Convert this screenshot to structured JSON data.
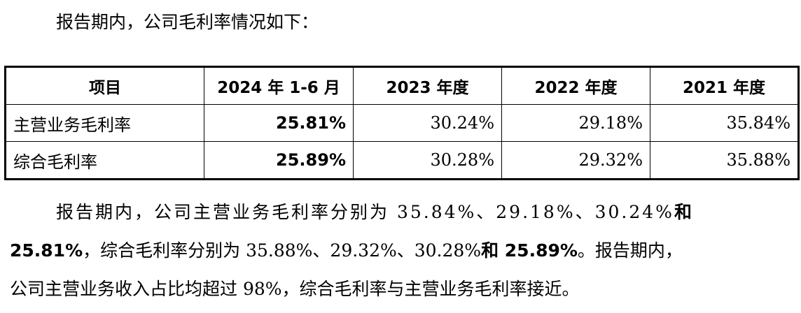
{
  "intro": "报告期内，公司毛利率情况如下：",
  "table": {
    "headers": [
      "项目",
      "2024 年 1-6 月",
      "2023 年度",
      "2022 年度",
      "2021 年度"
    ],
    "rows": [
      {
        "label": "主营业务毛利率",
        "values": [
          "25.81%",
          "30.24%",
          "29.18%",
          "35.84%"
        ]
      },
      {
        "label": "综合毛利率",
        "values": [
          "25.89%",
          "30.28%",
          "29.32%",
          "35.88%"
        ]
      }
    ]
  },
  "paragraph": {
    "line1_text": "报告期内，公司主营业务毛利率分别为 35.84%、29.18%、30.24%",
    "line1_bold": "和",
    "line2_bold_a": "25.81%",
    "line2_text_a": "，综合毛利率分别为 35.88%、29.32%、30.28%",
    "line2_bold_b": "和 25.89%",
    "line2_text_b": "。报告期内，",
    "line3_text": "公司主营业务收入占比均超过 98%，综合毛利率与主营业务毛利率接近。"
  }
}
